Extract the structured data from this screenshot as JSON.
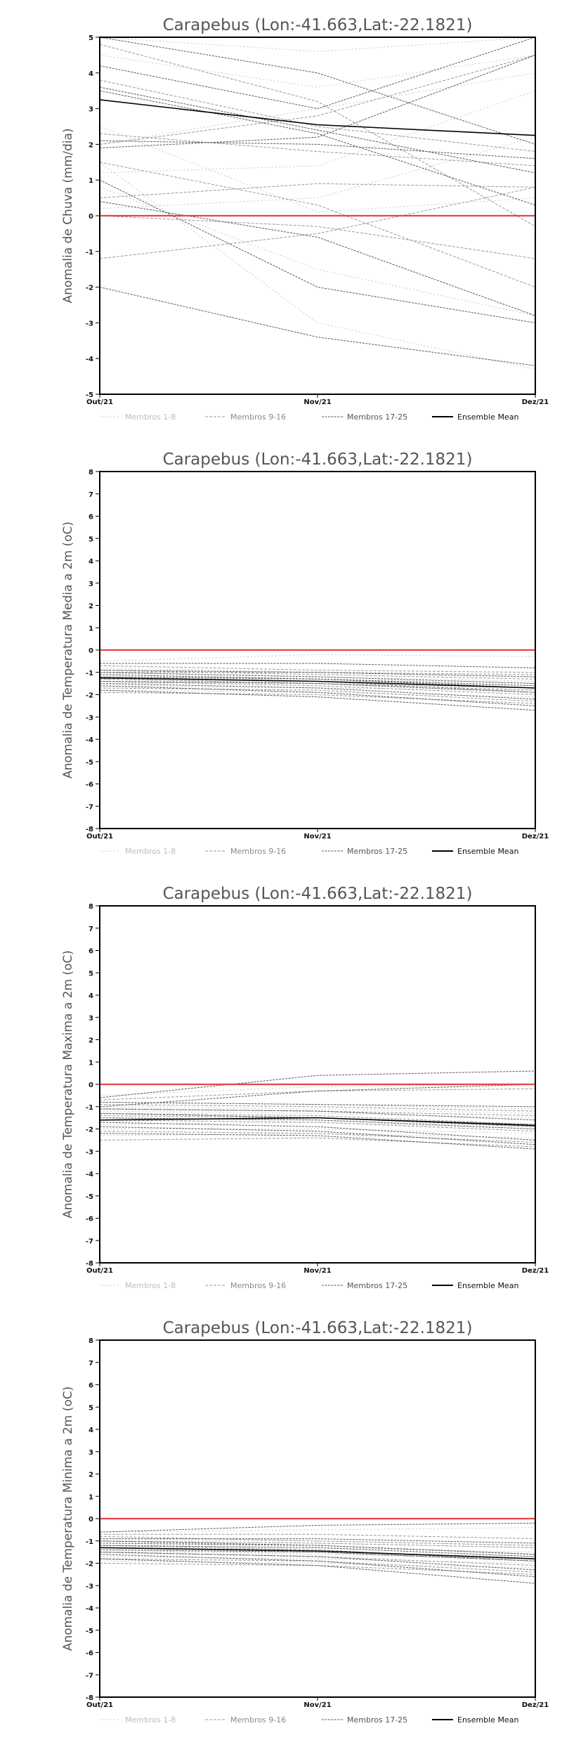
{
  "legend": {
    "members_1_8": "Membros 1-8",
    "members_9_16": "Membros 9-16",
    "members_17_25": "Membros 17-25",
    "ensemble_mean": "Ensemble Mean"
  },
  "colors": {
    "members_1_8": "#c8c8c8",
    "members_9_16": "#9a9a9a",
    "members_17_25": "#5a5a5a",
    "ensemble_mean": "#000000",
    "zero_line": "#e8434a"
  },
  "chart_data": [
    {
      "type": "line",
      "title": "Carapebus (Lon:-41.663,Lat:-22.1821)",
      "ylabel": "Anomalia de Chuva (mm/dia)",
      "categories": [
        "Out/21",
        "Nov/21",
        "Dez/21"
      ],
      "ylim": [
        -5,
        5
      ],
      "yticks": [
        -5,
        -4,
        -3,
        -2,
        -1,
        0,
        1,
        2,
        3,
        4,
        5
      ],
      "reference_line": 0,
      "series": [
        {
          "group": "members_1_8",
          "values": [
            4.5,
            3.6,
            4.5
          ]
        },
        {
          "group": "members_1_8",
          "values": [
            2.0,
            3.0,
            4.0
          ]
        },
        {
          "group": "members_1_8",
          "values": [
            0.2,
            0.5,
            2.2
          ]
        },
        {
          "group": "members_1_8",
          "values": [
            1.2,
            1.4,
            3.5
          ]
        },
        {
          "group": "members_1_8",
          "values": [
            0.8,
            -1.5,
            -2.8
          ]
        },
        {
          "group": "members_1_8",
          "values": [
            1.5,
            -3.0,
            -4.3
          ]
        },
        {
          "group": "members_1_8",
          "values": [
            2.5,
            0.1,
            0.5
          ]
        },
        {
          "group": "members_1_8",
          "values": [
            5.0,
            4.6,
            5.0
          ]
        },
        {
          "group": "members_9_16",
          "values": [
            2.0,
            2.8,
            4.5
          ]
        },
        {
          "group": "members_9_16",
          "values": [
            3.8,
            2.5,
            1.8
          ]
        },
        {
          "group": "members_9_16",
          "values": [
            4.8,
            3.2,
            -0.3
          ]
        },
        {
          "group": "members_9_16",
          "values": [
            1.5,
            0.3,
            -2.0
          ]
        },
        {
          "group": "members_9_16",
          "values": [
            -1.2,
            -0.5,
            0.8
          ]
        },
        {
          "group": "members_9_16",
          "values": [
            0.5,
            0.9,
            0.8
          ]
        },
        {
          "group": "members_9_16",
          "values": [
            2.3,
            1.8,
            1.4
          ]
        },
        {
          "group": "members_9_16",
          "values": [
            0.0,
            -0.3,
            -1.2
          ]
        },
        {
          "group": "members_17_25",
          "values": [
            5.0,
            4.0,
            2.0
          ]
        },
        {
          "group": "members_17_25",
          "values": [
            3.5,
            2.3,
            0.3
          ]
        },
        {
          "group": "members_17_25",
          "values": [
            1.9,
            2.2,
            4.5
          ]
        },
        {
          "group": "members_17_25",
          "values": [
            3.6,
            2.4,
            1.2
          ]
        },
        {
          "group": "members_17_25",
          "values": [
            0.4,
            -0.6,
            -2.8
          ]
        },
        {
          "group": "members_17_25",
          "values": [
            -2.0,
            -3.4,
            -4.2
          ]
        },
        {
          "group": "members_17_25",
          "values": [
            2.1,
            2.0,
            1.6
          ]
        },
        {
          "group": "members_17_25",
          "values": [
            4.2,
            3.0,
            5.0
          ]
        },
        {
          "group": "members_17_25",
          "values": [
            1.0,
            -2.0,
            -3.0
          ]
        },
        {
          "group": "ensemble_mean",
          "values": [
            3.25,
            2.55,
            2.25
          ]
        }
      ]
    },
    {
      "type": "line",
      "title": "Carapebus (Lon:-41.663,Lat:-22.1821)",
      "ylabel": "Anomalia de Temperatura Media a 2m (oC)",
      "categories": [
        "Out/21",
        "Nov/21",
        "Dez/21"
      ],
      "ylim": [
        -8,
        8
      ],
      "yticks": [
        -8,
        -7,
        -6,
        -5,
        -4,
        -3,
        -2,
        -1,
        0,
        1,
        2,
        3,
        4,
        5,
        6,
        7,
        8
      ],
      "reference_line": 0,
      "series": [
        {
          "group": "members_1_8",
          "values": [
            -0.5,
            -0.2,
            -0.3
          ]
        },
        {
          "group": "members_1_8",
          "values": [
            -1.0,
            -1.2,
            -1.4
          ]
        },
        {
          "group": "members_1_8",
          "values": [
            -1.3,
            -1.5,
            -1.7
          ]
        },
        {
          "group": "members_1_8",
          "values": [
            -1.8,
            -1.9,
            -2.1
          ]
        },
        {
          "group": "members_1_8",
          "values": [
            -0.8,
            -1.0,
            -1.2
          ]
        },
        {
          "group": "members_1_8",
          "values": [
            -1.5,
            -1.4,
            -1.6
          ]
        },
        {
          "group": "members_1_8",
          "values": [
            -1.1,
            -1.3,
            -1.5
          ]
        },
        {
          "group": "members_1_8",
          "values": [
            -1.6,
            -1.7,
            -1.8
          ]
        },
        {
          "group": "members_9_16",
          "values": [
            -0.9,
            -1.1,
            -1.3
          ]
        },
        {
          "group": "members_9_16",
          "values": [
            -1.2,
            -1.4,
            -1.9
          ]
        },
        {
          "group": "members_9_16",
          "values": [
            -1.4,
            -1.6,
            -2.0
          ]
        },
        {
          "group": "members_9_16",
          "values": [
            -1.7,
            -1.8,
            -2.3
          ]
        },
        {
          "group": "members_9_16",
          "values": [
            -1.0,
            -1.0,
            -1.1
          ]
        },
        {
          "group": "members_9_16",
          "values": [
            -1.3,
            -1.5,
            -1.8
          ]
        },
        {
          "group": "members_9_16",
          "values": [
            -1.9,
            -2.0,
            -2.4
          ]
        },
        {
          "group": "members_9_16",
          "values": [
            -0.7,
            -0.9,
            -1.0
          ]
        },
        {
          "group": "members_17_25",
          "values": [
            -0.6,
            -0.6,
            -0.8
          ]
        },
        {
          "group": "members_17_25",
          "values": [
            -1.1,
            -1.3,
            -1.6
          ]
        },
        {
          "group": "members_17_25",
          "values": [
            -1.4,
            -1.5,
            -1.9
          ]
        },
        {
          "group": "members_17_25",
          "values": [
            -1.8,
            -2.1,
            -2.7
          ]
        },
        {
          "group": "members_17_25",
          "values": [
            -1.0,
            -1.2,
            -1.5
          ]
        },
        {
          "group": "members_17_25",
          "values": [
            -1.5,
            -1.7,
            -2.2
          ]
        },
        {
          "group": "members_17_25",
          "values": [
            -1.2,
            -1.3,
            -1.7
          ]
        },
        {
          "group": "members_17_25",
          "values": [
            -1.6,
            -1.9,
            -2.5
          ]
        },
        {
          "group": "members_17_25",
          "values": [
            -0.9,
            -1.0,
            -1.2
          ]
        },
        {
          "group": "ensemble_mean",
          "values": [
            -1.25,
            -1.4,
            -1.7
          ]
        }
      ]
    },
    {
      "type": "line",
      "title": "Carapebus (Lon:-41.663,Lat:-22.1821)",
      "ylabel": "Anomalia de Temperatura Maxima a 2m (oC)",
      "categories": [
        "Out/21",
        "Nov/21",
        "Dez/21"
      ],
      "ylim": [
        -8,
        8
      ],
      "yticks": [
        -8,
        -7,
        -6,
        -5,
        -4,
        -3,
        -2,
        -1,
        0,
        1,
        2,
        3,
        4,
        5,
        6,
        7,
        8
      ],
      "reference_line": 0,
      "series": [
        {
          "group": "members_1_8",
          "values": [
            -0.5,
            -0.1,
            0.0
          ]
        },
        {
          "group": "members_1_8",
          "values": [
            -1.0,
            -1.1,
            -1.3
          ]
        },
        {
          "group": "members_1_8",
          "values": [
            -1.5,
            -1.6,
            -1.9
          ]
        },
        {
          "group": "members_1_8",
          "values": [
            -2.3,
            -2.2,
            -2.4
          ]
        },
        {
          "group": "members_1_8",
          "values": [
            -0.8,
            -0.9,
            -1.1
          ]
        },
        {
          "group": "members_1_8",
          "values": [
            -1.8,
            -1.7,
            -2.0
          ]
        },
        {
          "group": "members_1_8",
          "values": [
            -1.2,
            -1.3,
            -1.5
          ]
        },
        {
          "group": "members_1_8",
          "values": [
            -2.0,
            -2.0,
            -2.2
          ]
        },
        {
          "group": "members_9_16",
          "values": [
            -0.9,
            -1.0,
            -1.2
          ]
        },
        {
          "group": "members_9_16",
          "values": [
            -1.3,
            -1.4,
            -1.8
          ]
        },
        {
          "group": "members_9_16",
          "values": [
            -1.6,
            -1.7,
            -2.1
          ]
        },
        {
          "group": "members_9_16",
          "values": [
            -2.1,
            -2.2,
            -2.6
          ]
        },
        {
          "group": "members_9_16",
          "values": [
            -1.1,
            -1.2,
            -1.4
          ]
        },
        {
          "group": "members_9_16",
          "values": [
            -1.4,
            -1.5,
            -1.9
          ]
        },
        {
          "group": "members_9_16",
          "values": [
            -2.5,
            -2.4,
            -2.8
          ]
        },
        {
          "group": "members_9_16",
          "values": [
            -0.7,
            -0.3,
            -0.2
          ]
        },
        {
          "group": "members_17_25",
          "values": [
            -0.6,
            0.4,
            0.6
          ]
        },
        {
          "group": "members_17_25",
          "values": [
            -1.0,
            -0.3,
            0.0
          ]
        },
        {
          "group": "members_17_25",
          "values": [
            -1.5,
            -1.6,
            -2.0
          ]
        },
        {
          "group": "members_17_25",
          "values": [
            -2.2,
            -2.3,
            -2.9
          ]
        },
        {
          "group": "members_17_25",
          "values": [
            -1.3,
            -1.5,
            -1.8
          ]
        },
        {
          "group": "members_17_25",
          "values": [
            -1.7,
            -1.9,
            -2.5
          ]
        },
        {
          "group": "members_17_25",
          "values": [
            -1.1,
            -1.2,
            -1.6
          ]
        },
        {
          "group": "members_17_25",
          "values": [
            -1.9,
            -2.1,
            -2.7
          ]
        },
        {
          "group": "members_17_25",
          "values": [
            -0.8,
            -0.9,
            -1.0
          ]
        },
        {
          "group": "ensemble_mean",
          "values": [
            -1.6,
            -1.5,
            -1.85
          ]
        }
      ]
    },
    {
      "type": "line",
      "title": "Carapebus (Lon:-41.663,Lat:-22.1821)",
      "ylabel": "Anomalia de Temperatura Minima a 2m (oC)",
      "categories": [
        "Out/21",
        "Nov/21",
        "Dez/21"
      ],
      "ylim": [
        -8,
        8
      ],
      "yticks": [
        -8,
        -7,
        -6,
        -5,
        -4,
        -3,
        -2,
        -1,
        0,
        1,
        2,
        3,
        4,
        5,
        6,
        7,
        8
      ],
      "reference_line": 0,
      "series": [
        {
          "group": "members_1_8",
          "values": [
            -0.6,
            -0.5,
            -0.4
          ]
        },
        {
          "group": "members_1_8",
          "values": [
            -1.0,
            -1.1,
            -1.3
          ]
        },
        {
          "group": "members_1_8",
          "values": [
            -1.4,
            -1.6,
            -1.8
          ]
        },
        {
          "group": "members_1_8",
          "values": [
            -1.9,
            -2.0,
            -2.2
          ]
        },
        {
          "group": "members_1_8",
          "values": [
            -0.9,
            -1.0,
            -1.2
          ]
        },
        {
          "group": "members_1_8",
          "values": [
            -1.5,
            -1.5,
            -1.7
          ]
        },
        {
          "group": "members_1_8",
          "values": [
            -1.2,
            -1.3,
            -1.5
          ]
        },
        {
          "group": "members_1_8",
          "values": [
            -1.7,
            -1.8,
            -2.0
          ]
        },
        {
          "group": "members_9_16",
          "values": [
            -0.8,
            -1.0,
            -1.2
          ]
        },
        {
          "group": "members_9_16",
          "values": [
            -1.2,
            -1.4,
            -1.9
          ]
        },
        {
          "group": "members_9_16",
          "values": [
            -1.5,
            -1.7,
            -2.1
          ]
        },
        {
          "group": "members_9_16",
          "values": [
            -1.8,
            -1.9,
            -2.4
          ]
        },
        {
          "group": "members_9_16",
          "values": [
            -1.0,
            -1.1,
            -1.3
          ]
        },
        {
          "group": "members_9_16",
          "values": [
            -1.3,
            -1.5,
            -1.9
          ]
        },
        {
          "group": "members_9_16",
          "values": [
            -2.0,
            -2.1,
            -2.5
          ]
        },
        {
          "group": "members_9_16",
          "values": [
            -0.7,
            -0.7,
            -0.9
          ]
        },
        {
          "group": "members_17_25",
          "values": [
            -0.6,
            -0.3,
            -0.2
          ]
        },
        {
          "group": "members_17_25",
          "values": [
            -1.1,
            -1.2,
            -1.6
          ]
        },
        {
          "group": "members_17_25",
          "values": [
            -1.4,
            -1.5,
            -1.9
          ]
        },
        {
          "group": "members_17_25",
          "values": [
            -1.8,
            -2.1,
            -2.9
          ]
        },
        {
          "group": "members_17_25",
          "values": [
            -1.0,
            -1.2,
            -1.6
          ]
        },
        {
          "group": "members_17_25",
          "values": [
            -1.5,
            -1.7,
            -2.3
          ]
        },
        {
          "group": "members_17_25",
          "values": [
            -1.2,
            -1.3,
            -1.7
          ]
        },
        {
          "group": "members_17_25",
          "values": [
            -1.6,
            -1.9,
            -2.6
          ]
        },
        {
          "group": "members_17_25",
          "values": [
            -0.9,
            -0.9,
            -1.1
          ]
        },
        {
          "group": "ensemble_mean",
          "values": [
            -1.3,
            -1.45,
            -1.8
          ]
        }
      ]
    }
  ]
}
